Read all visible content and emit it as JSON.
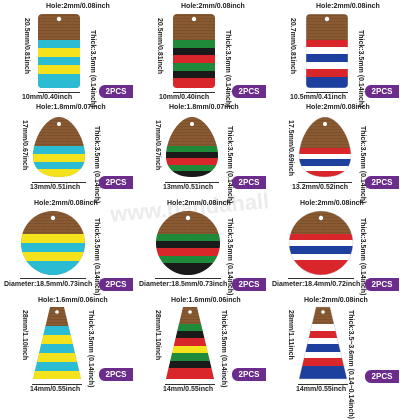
{
  "badge_label": "2PCS",
  "watermark": "www.pandahall",
  "colors": {
    "badge": "#6b2c8c",
    "wood": "#8a5a32",
    "teal": "#2bbcd4",
    "yellow": "#f4e21c",
    "red": "#d8262b",
    "green": "#1e8a3a",
    "black": "#1a1a1a",
    "blue": "#1d3f9e",
    "white": "#ffffff"
  },
  "items": [
    {
      "hole": "Hole:2mm/0.08inch",
      "height": "20.5mm/0.81inch",
      "thick": "Thick:3.5mm (0.14inch)",
      "bottom": "10mm/0.40inch"
    },
    {
      "hole": "Hole:2mm/0.08inch",
      "height": "20.5mm/0.81inch",
      "thick": "Thick:3.5mm (0.14inch)",
      "bottom": "10mm/0.40inch"
    },
    {
      "hole": "Hole:2mm/0.08inch",
      "height": "20.7mm/0.81inch",
      "thick": "Thick:3.5mm (0.14inch)",
      "bottom": "10.5mm/0.41inch"
    },
    {
      "hole": "Hole:1.8mm/0.07inch",
      "height": "17mm/0.67inch",
      "thick": "Thick:3.5mm (0.14inch)",
      "bottom": "13mm/0.51inch"
    },
    {
      "hole": "Hole:1.8mm/0.07inch",
      "height": "17mm/0.67inch",
      "thick": "Thick:3.5mm (0.14inch)",
      "bottom": "13mm/0.51inch"
    },
    {
      "hole": "Hole:2mm/0.08inch",
      "height": "17.5mm/0.69inch",
      "thick": "Thick:3.5mm (0.14inch)",
      "bottom": "13.2mm/0.52inch"
    },
    {
      "hole": "Hole:2mm/0.08inch",
      "height": "",
      "thick": "Thick:3.5mm (0.14inch)",
      "bottom": "Diameter:18.5mm/0.73inch"
    },
    {
      "hole": "Hole:2mm/0.08inch",
      "height": "",
      "thick": "Thick:3.5mm (0.14inch)",
      "bottom": "Diameter:18.5mm/0.73inch"
    },
    {
      "hole": "Hole:2mm/0.08inch",
      "height": "",
      "thick": "Thick:3.5mm (0.14inch)",
      "bottom": "Diameter:18.4mm/0.72inch"
    },
    {
      "hole": "Hole:1.6mm/0.06inch",
      "height": "28mm/1.10inch",
      "thick": "Thick:3.5mm (0.14inch)",
      "bottom": "14mm/0.55inch"
    },
    {
      "hole": "Hole:1.6mm/0.06inch",
      "height": "28mm/1.10inch",
      "thick": "Thick:3.5mm (0.14inch)",
      "bottom": "14mm/0.55inch"
    },
    {
      "hole": "Hole:2mm/0.08inch",
      "height": "28mm/1.11inch",
      "thick": "Thick:3.5~3.6mm (0.14~0.14inch)",
      "bottom": "14mm/0.55inch"
    }
  ]
}
